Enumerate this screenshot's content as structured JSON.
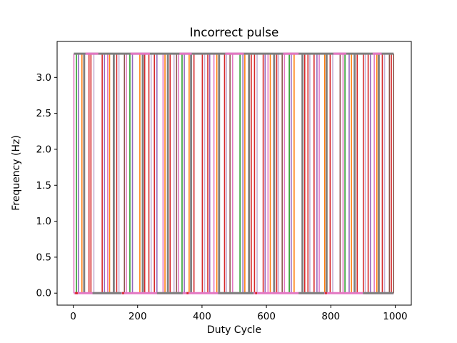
{
  "figure": {
    "background": "#ffffff",
    "spine_color": "#000000"
  },
  "chart_data": {
    "type": "line",
    "subtype": "pulse-train",
    "title": "Incorrect pulse",
    "xlabel": "Duty Cycle",
    "ylabel": "Frequency (Hz)",
    "xlim": [
      -50,
      1050
    ],
    "ylim": [
      -0.1667,
      3.5
    ],
    "xticks": [
      0,
      200,
      400,
      600,
      800,
      1000
    ],
    "xtick_labels": [
      "0",
      "200",
      "400",
      "600",
      "800",
      "1000"
    ],
    "yticks": [
      0.0,
      0.5,
      1.0,
      1.5,
      2.0,
      2.5,
      3.0
    ],
    "ytick_labels": [
      "0.0",
      "0.5",
      "1.0",
      "1.5",
      "2.0",
      "2.5",
      "3.0"
    ],
    "grid": false,
    "legend": null,
    "pulse_low": 0.0,
    "pulse_high": 3.33,
    "palette": {
      "r": "#d62728",
      "o": "#ff7f0e",
      "g": "#2ca02c",
      "u": "#9467bd",
      "b": "#8c564b",
      "p": "#e377c2",
      "a": "#7f7f7f",
      "v": "#c5b0d5"
    },
    "pulses": [
      [
        2,
        "p"
      ],
      [
        10,
        "g"
      ],
      [
        16,
        "u"
      ],
      [
        27,
        "o"
      ],
      [
        34,
        "a"
      ],
      [
        49,
        "r"
      ],
      [
        55,
        "r"
      ],
      [
        64,
        "v"
      ],
      [
        90,
        "r"
      ],
      [
        97,
        "u"
      ],
      [
        107,
        "p"
      ],
      [
        113,
        "o"
      ],
      [
        126,
        "a"
      ],
      [
        135,
        "r"
      ],
      [
        142,
        "v"
      ],
      [
        159,
        "b"
      ],
      [
        165,
        "p"
      ],
      [
        176,
        "g"
      ],
      [
        184,
        "u"
      ],
      [
        207,
        "o"
      ],
      [
        216,
        "a"
      ],
      [
        222,
        "r"
      ],
      [
        235,
        "r"
      ],
      [
        242,
        "v"
      ],
      [
        252,
        "r"
      ],
      [
        260,
        "u"
      ],
      [
        279,
        "p"
      ],
      [
        285,
        "o"
      ],
      [
        294,
        "a"
      ],
      [
        301,
        "r"
      ],
      [
        313,
        "v"
      ],
      [
        321,
        "b"
      ],
      [
        327,
        "p"
      ],
      [
        338,
        "g"
      ],
      [
        345,
        "u"
      ],
      [
        360,
        "o"
      ],
      [
        366,
        "a"
      ],
      [
        375,
        "r"
      ],
      [
        401,
        "r"
      ],
      [
        408,
        "v"
      ],
      [
        418,
        "r"
      ],
      [
        424,
        "u"
      ],
      [
        437,
        "p"
      ],
      [
        446,
        "o"
      ],
      [
        453,
        "a"
      ],
      [
        470,
        "r"
      ],
      [
        476,
        "v"
      ],
      [
        487,
        "b"
      ],
      [
        495,
        "p"
      ],
      [
        518,
        "g"
      ],
      [
        527,
        "u"
      ],
      [
        533,
        "o"
      ],
      [
        546,
        "a"
      ],
      [
        553,
        "r"
      ],
      [
        563,
        "r"
      ],
      [
        571,
        "v"
      ],
      [
        590,
        "r"
      ],
      [
        596,
        "u"
      ],
      [
        605,
        "p"
      ],
      [
        612,
        "o"
      ],
      [
        624,
        "a"
      ],
      [
        632,
        "r"
      ],
      [
        638,
        "v"
      ],
      [
        649,
        "b"
      ],
      [
        656,
        "p"
      ],
      [
        671,
        "g"
      ],
      [
        677,
        "u"
      ],
      [
        686,
        "o"
      ],
      [
        712,
        "a"
      ],
      [
        719,
        "r"
      ],
      [
        729,
        "r"
      ],
      [
        735,
        "v"
      ],
      [
        748,
        "r"
      ],
      [
        757,
        "u"
      ],
      [
        764,
        "p"
      ],
      [
        781,
        "o"
      ],
      [
        787,
        "a"
      ],
      [
        798,
        "r"
      ],
      [
        806,
        "v"
      ],
      [
        829,
        "b"
      ],
      [
        838,
        "p"
      ],
      [
        844,
        "g"
      ],
      [
        857,
        "u"
      ],
      [
        864,
        "o"
      ],
      [
        874,
        "a"
      ],
      [
        882,
        "r"
      ],
      [
        901,
        "r"
      ],
      [
        907,
        "v"
      ],
      [
        916,
        "r"
      ],
      [
        923,
        "u"
      ],
      [
        935,
        "p"
      ],
      [
        943,
        "o"
      ],
      [
        949,
        "a"
      ],
      [
        960,
        "r"
      ],
      [
        967,
        "v"
      ],
      [
        982,
        "b"
      ],
      [
        988,
        "r"
      ],
      [
        995,
        "b"
      ]
    ],
    "top_rail": {
      "y": 3.33,
      "x0": 2,
      "x1": 995,
      "color": "a",
      "width": 3.0,
      "overlays": [
        {
          "x0": 38,
          "x1": 78,
          "color": "p"
        },
        {
          "x0": 178,
          "x1": 238,
          "color": "p"
        },
        {
          "x0": 330,
          "x1": 368,
          "color": "p"
        },
        {
          "x0": 472,
          "x1": 530,
          "color": "p"
        },
        {
          "x0": 652,
          "x1": 700,
          "color": "p"
        },
        {
          "x0": 808,
          "x1": 848,
          "color": "p"
        },
        {
          "x0": 930,
          "x1": 958,
          "color": "p"
        }
      ]
    },
    "bottom_rail": {
      "y": 0.0,
      "x0": 2,
      "x1": 995,
      "color": "p",
      "width": 3.0,
      "overlays": [
        {
          "x0": 60,
          "x1": 150,
          "color": "a"
        },
        {
          "x0": 260,
          "x1": 340,
          "color": "a"
        },
        {
          "x0": 450,
          "x1": 560,
          "color": "a"
        },
        {
          "x0": 700,
          "x1": 780,
          "color": "a"
        },
        {
          "x0": 900,
          "x1": 995,
          "color": "a"
        },
        {
          "x0": 6,
          "x1": 14,
          "color": "r"
        },
        {
          "x0": 152,
          "x1": 158,
          "color": "r"
        },
        {
          "x0": 352,
          "x1": 358,
          "color": "r"
        },
        {
          "x0": 565,
          "x1": 571,
          "color": "r"
        },
        {
          "x0": 782,
          "x1": 788,
          "color": "r"
        }
      ]
    }
  }
}
